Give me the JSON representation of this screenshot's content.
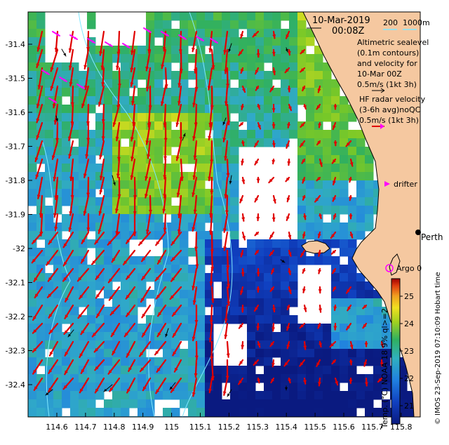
{
  "map": {
    "title_date": "10-Mar-2019",
    "title_time": "00:08Z",
    "scale_label_200": "200",
    "scale_label_1000": "1000m",
    "legend_lines": [
      "Altimetric sealevel",
      "(0.1m contours)",
      "and velocity for",
      "10-Mar 00Z",
      "0.5m/s (1kt 3h)"
    ],
    "hf_lines": [
      "HF radar velocity",
      "(3-6h avg)noQC",
      "0.5m/s (1kt 3h)"
    ],
    "drifter_label": "drifter",
    "perth_label": "Perth",
    "argo_label": "Argo 0",
    "side_credit": "© IMOS 23-Sep-2019 07:10:09 Hobart time",
    "colorbar_caption": "Temp. (°C) NOAA 18 9% ql>=2",
    "colorbar_ticks": [
      "25",
      "24",
      "23",
      "22",
      "21"
    ],
    "lat_ticks": [
      "-31.4",
      "-31.5",
      "-31.6",
      "-31.7",
      "-31.8",
      "-31.9",
      "-32",
      "-32.1",
      "-32.2",
      "-32.3",
      "-32.4"
    ],
    "lon_ticks": [
      "114.6",
      "114.7",
      "114.8",
      "114.9",
      "115",
      "115.1",
      "115.2",
      "115.3",
      "115.4",
      "115.5",
      "115.6",
      "115.7",
      "115.8"
    ],
    "colors": {
      "land": "#f5c8a0",
      "hf_arrow": "#e00000",
      "altimetry_arrow": "#000000",
      "drifter": "#ff00ff",
      "isobath": "#7fe8ff",
      "cold": "#0a1a80",
      "warm": "#b00000"
    }
  }
}
